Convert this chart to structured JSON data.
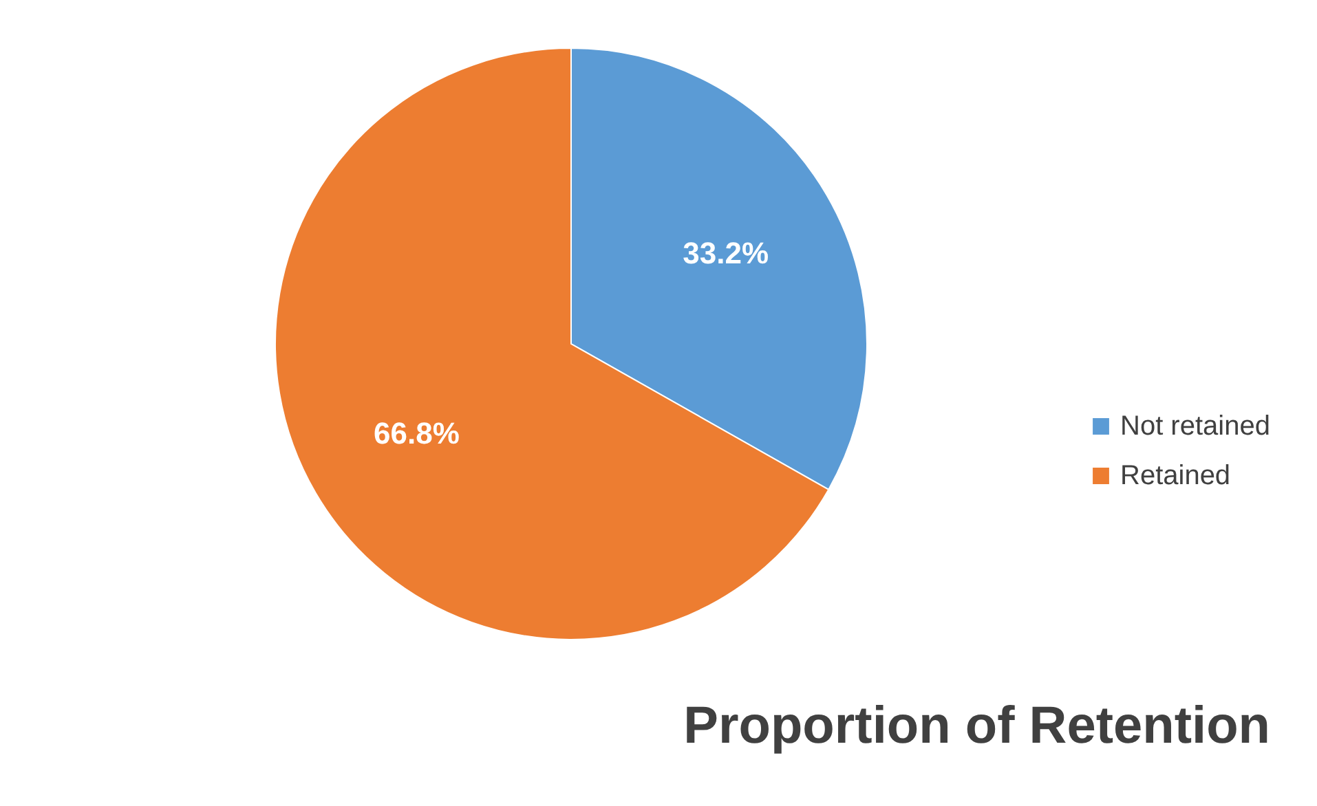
{
  "chart_data": {
    "type": "pie",
    "title": "Proportion of Retention",
    "categories": [
      "Not retained",
      "Retained"
    ],
    "values": [
      33.2,
      66.8
    ],
    "colors": [
      "#5b9bd5",
      "#ed7d31"
    ],
    "value_labels": [
      "33.2%",
      "66.8%"
    ],
    "legend": "right"
  }
}
